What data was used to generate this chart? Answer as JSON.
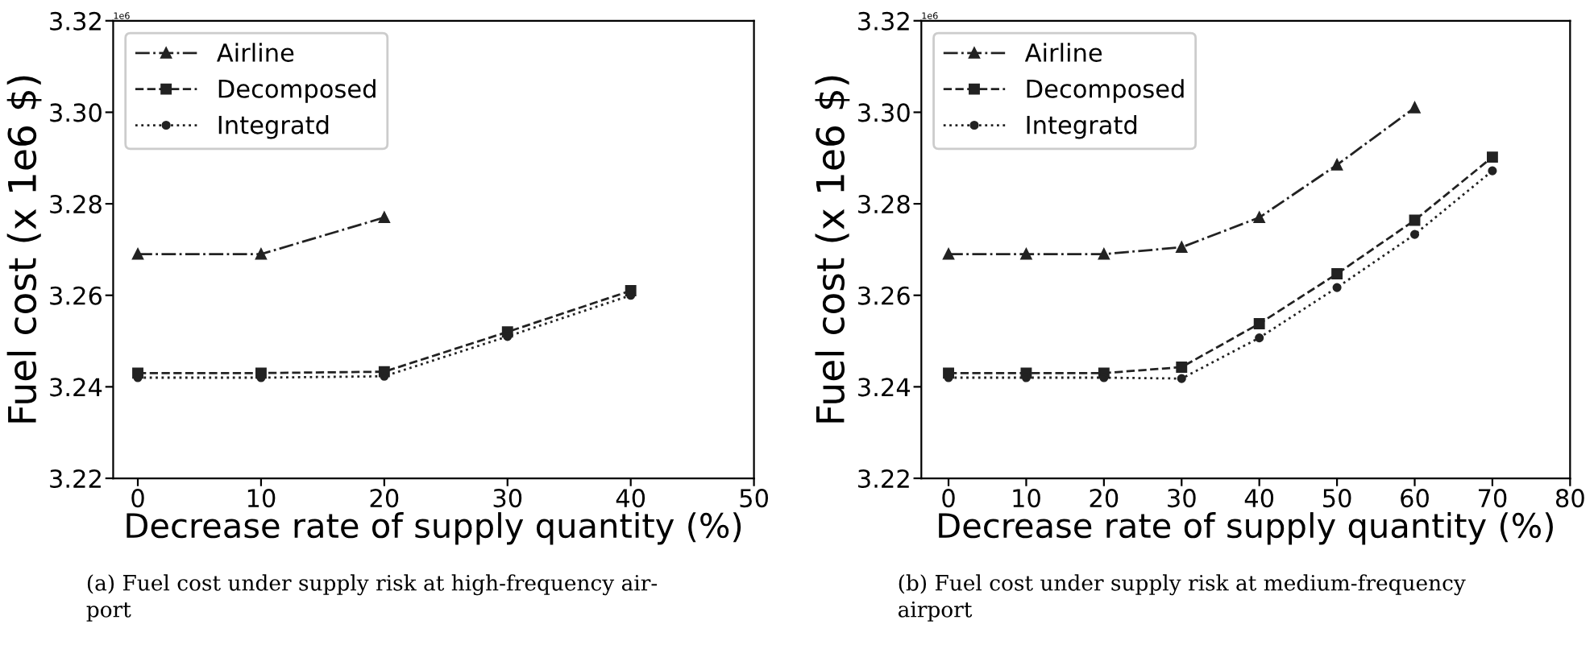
{
  "chart_data": [
    {
      "type": "line",
      "xlabel": "Decrease rate of supply quantity (%)",
      "ylabel": "Fuel cost (x 1e6 $)",
      "x": [
        0,
        10,
        20,
        30,
        40
      ],
      "xlim": [
        -2,
        50
      ],
      "xticks": [
        0,
        10,
        20,
        30,
        40,
        50
      ],
      "ylim": [
        3.22,
        3.32
      ],
      "yticks": [
        {
          "value": 3.22,
          "label": "3.22"
        },
        {
          "value": 3.24,
          "label": "3.24"
        },
        {
          "value": 3.26,
          "label": "3.26"
        },
        {
          "value": 3.28,
          "label": "3.28"
        },
        {
          "value": 3.3,
          "label": "3.30"
        },
        {
          "value": 3.32,
          "label": "3.32"
        }
      ],
      "grid": false,
      "legend": "top left",
      "series": [
        {
          "name": "Airline",
          "color": "#222222",
          "marker": "triangle",
          "line_style": "dashdot",
          "values": [
            3.269,
            3.269,
            3.277,
            null,
            null
          ]
        },
        {
          "name": "Decomposed",
          "color": "#222222",
          "marker": "square",
          "line_style": "dashed",
          "values": [
            3.243,
            3.243,
            3.2433,
            3.252,
            3.261
          ]
        },
        {
          "name": "Integratd",
          "color": "#222222",
          "marker": "circle",
          "line_style": "dotted",
          "values": [
            3.242,
            3.242,
            3.2423,
            3.251,
            3.26
          ]
        }
      ],
      "annotations": [
        "1e6",
        "(a) Fuel cost under supply risk at high-frequency air-\nport"
      ]
    },
    {
      "type": "line",
      "xlabel": "Decrease rate of supply quantity (%)",
      "ylabel": "Fuel cost (x 1e6 $)",
      "x": [
        0,
        10,
        20,
        30,
        40,
        50,
        60,
        70
      ],
      "xlim": [
        -3.5,
        80
      ],
      "xticks": [
        0,
        10,
        20,
        30,
        40,
        50,
        60,
        70,
        80
      ],
      "ylim": [
        3.22,
        3.32
      ],
      "yticks": [
        {
          "value": 3.22,
          "label": "3.22"
        },
        {
          "value": 3.24,
          "label": "3.24"
        },
        {
          "value": 3.26,
          "label": "3.26"
        },
        {
          "value": 3.28,
          "label": "3.28"
        },
        {
          "value": 3.3,
          "label": "3.30"
        },
        {
          "value": 3.32,
          "label": "3.32"
        }
      ],
      "grid": false,
      "legend": "top left",
      "series": [
        {
          "name": "Airline",
          "color": "#222222",
          "marker": "triangle",
          "line_style": "dashdot",
          "values": [
            3.269,
            3.269,
            3.269,
            3.2705,
            3.277,
            3.2885,
            3.301,
            null
          ]
        },
        {
          "name": "Decomposed",
          "color": "#222222",
          "marker": "square",
          "line_style": "dashed",
          "values": [
            3.243,
            3.243,
            3.243,
            3.2443,
            3.2538,
            3.2647,
            3.2764,
            3.2902
          ]
        },
        {
          "name": "Integratd",
          "color": "#222222",
          "marker": "circle",
          "line_style": "dotted",
          "values": [
            3.242,
            3.242,
            3.242,
            3.2418,
            3.2507,
            3.2617,
            3.2733,
            3.2872
          ]
        }
      ],
      "annotations": [
        "1e6",
        "(b) Fuel cost under supply risk at medium-frequency\nairport"
      ]
    }
  ]
}
